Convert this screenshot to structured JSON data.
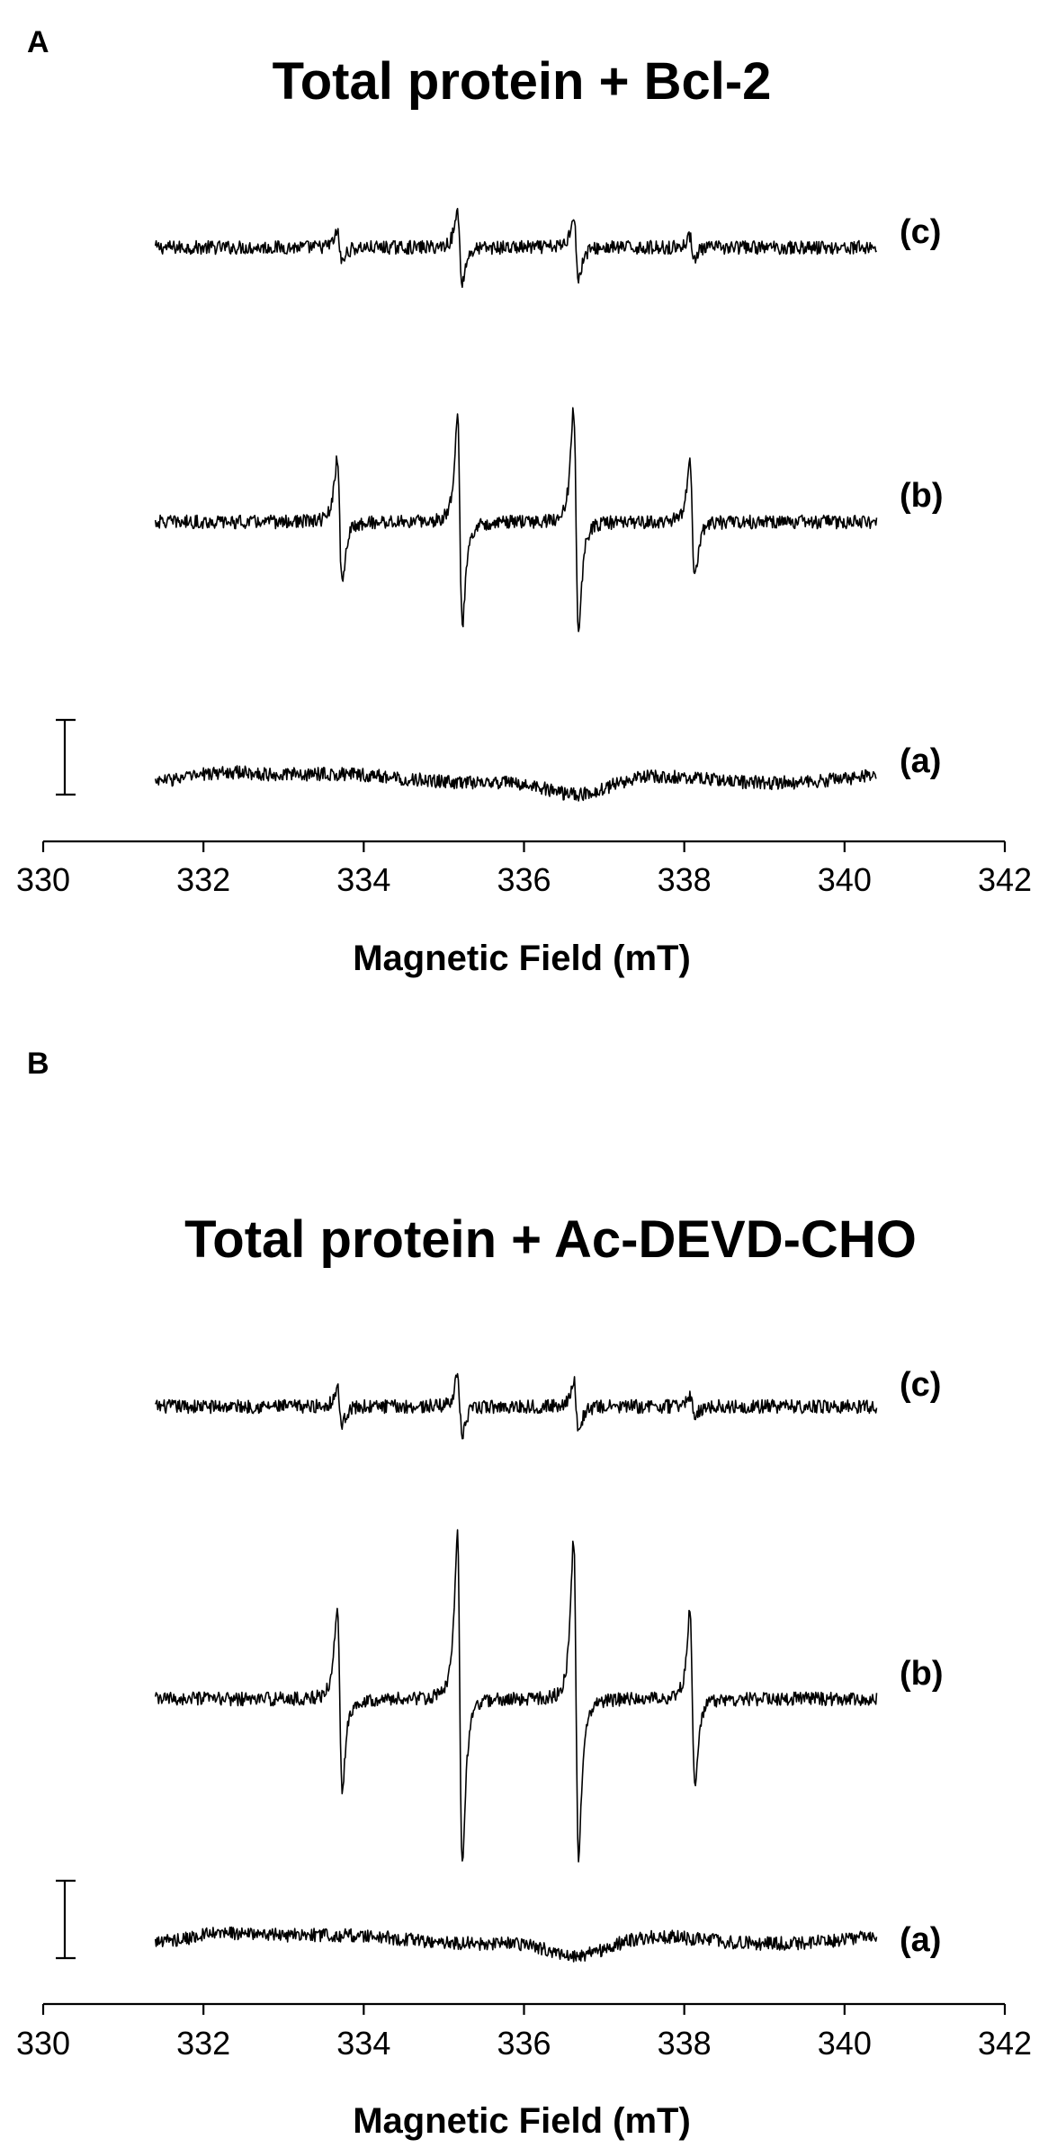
{
  "chart_data": [
    {
      "type": "line",
      "panel": "A",
      "title": "Total protein + Bcl-2",
      "xlabel": "Magnetic Field (mT)",
      "ylabel": "",
      "xlim": [
        330,
        342
      ],
      "xticks": [
        "330",
        "332",
        "334",
        "336",
        "338",
        "340",
        "342"
      ],
      "x_range": [
        331.4,
        340.4
      ],
      "grid": false,
      "line_positions_mT": [
        333.7,
        335.2,
        336.65,
        338.1
      ],
      "series": [
        {
          "name": "(c)",
          "amplitudes": [
            0.18,
            0.42,
            0.4,
            0.12
          ]
        },
        {
          "name": "(b)",
          "amplitudes": [
            0.75,
            1.25,
            1.35,
            0.7
          ]
        },
        {
          "name": "(a)",
          "amplitudes": [
            0.0,
            0.0,
            0.0,
            0.0
          ]
        }
      ]
    },
    {
      "type": "line",
      "panel": "B",
      "title": "Total protein + Ac-DEVD-CHO",
      "xlabel": "Magnetic Field (mT)",
      "ylabel": "",
      "xlim": [
        330,
        342
      ],
      "xticks": [
        "330",
        "332",
        "334",
        "336",
        "338",
        "340",
        "342"
      ],
      "x_range": [
        331.4,
        340.4
      ],
      "grid": false,
      "line_positions_mT": [
        333.7,
        335.2,
        336.65,
        338.1
      ],
      "series": [
        {
          "name": "(c)",
          "amplitudes": [
            0.22,
            0.36,
            0.32,
            0.14
          ]
        },
        {
          "name": "(b)",
          "amplitudes": [
            1.1,
            2.0,
            1.9,
            1.05
          ]
        },
        {
          "name": "(a)",
          "amplitudes": [
            0.0,
            0.0,
            0.0,
            0.0
          ]
        }
      ]
    }
  ]
}
